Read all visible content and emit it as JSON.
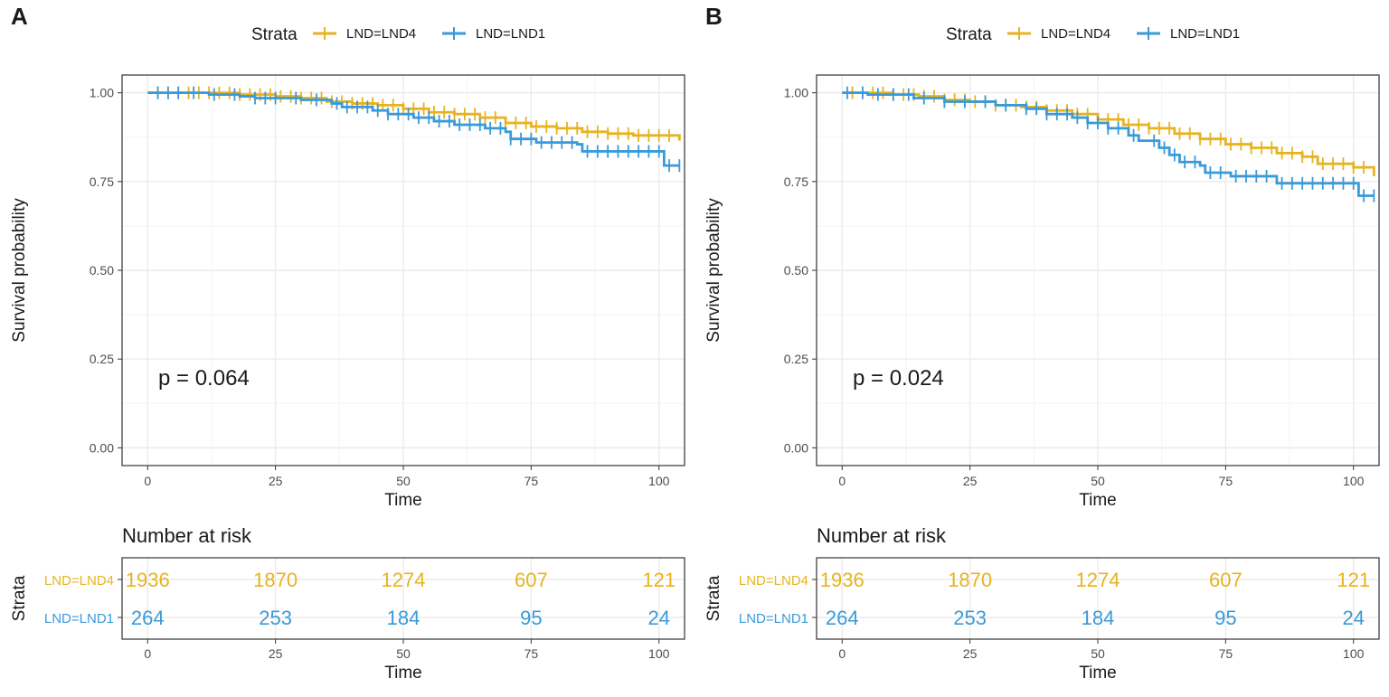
{
  "colors": {
    "lnd4": "#E7B31F",
    "lnd1": "#3A9AD9",
    "grid": "#EBEBEB",
    "axis_text": "#4D4D4D",
    "text": "#1A1A1A"
  },
  "legend": {
    "title": "Strata",
    "labels": [
      "LND=LND4",
      "LND=LND1"
    ]
  },
  "panels": [
    {
      "tag": "A",
      "p_value": "p = 0.064",
      "xlabel": "Time",
      "ylabel": "Survival probability",
      "risk_title": "Number at risk",
      "risk_ylabel": "Strata"
    },
    {
      "tag": "B",
      "p_value": "p = 0.024",
      "xlabel": "Time",
      "ylabel": "Survival probability",
      "risk_title": "Number at risk",
      "risk_ylabel": "Strata"
    }
  ],
  "chart_data": [
    {
      "type": "line",
      "title": "",
      "panel": "A",
      "xlabel": "Time",
      "ylabel": "Survival probability",
      "xlim": [
        -5,
        105
      ],
      "ylim": [
        -0.05,
        1.05
      ],
      "x_ticks": [
        0,
        25,
        50,
        75,
        100
      ],
      "x_tick_labels": [
        "0",
        "25",
        "50",
        "75",
        "100"
      ],
      "y_ticks": [
        0,
        0.25,
        0.5,
        0.75,
        1
      ],
      "y_tick_labels": [
        "0.00",
        "0.25",
        "0.50",
        "0.75",
        "1.00"
      ],
      "legend_position": "top",
      "series": [
        {
          "name": "LND=LND4",
          "color_key": "lnd4",
          "points": [
            [
              0,
              1
            ],
            [
              10,
              1
            ],
            [
              18,
              0.995
            ],
            [
              25,
              0.99
            ],
            [
              30,
              0.985
            ],
            [
              35,
              0.975
            ],
            [
              40,
              0.97
            ],
            [
              45,
              0.965
            ],
            [
              50,
              0.955
            ],
            [
              55,
              0.945
            ],
            [
              60,
              0.94
            ],
            [
              65,
              0.93
            ],
            [
              70,
              0.915
            ],
            [
              75,
              0.905
            ],
            [
              80,
              0.9
            ],
            [
              85,
              0.89
            ],
            [
              90,
              0.885
            ],
            [
              95,
              0.88
            ],
            [
              102,
              0.88
            ],
            [
              104,
              0.865
            ]
          ],
          "censor_times": [
            2,
            4,
            6,
            8,
            10,
            12,
            14,
            16,
            18,
            20,
            22,
            24,
            26,
            28,
            30,
            32,
            34,
            36,
            38,
            40,
            42,
            44,
            46,
            48,
            50,
            52,
            54,
            56,
            58,
            60,
            62,
            64,
            66,
            68,
            70,
            72,
            74,
            76,
            78,
            80,
            82,
            84,
            86,
            88,
            90,
            92,
            94,
            96,
            98,
            100,
            102
          ]
        },
        {
          "name": "LND=LND1",
          "color_key": "lnd1",
          "points": [
            [
              0,
              1
            ],
            [
              12,
              0.995
            ],
            [
              18,
              0.99
            ],
            [
              21,
              0.985
            ],
            [
              30,
              0.98
            ],
            [
              36,
              0.97
            ],
            [
              38,
              0.96
            ],
            [
              44,
              0.95
            ],
            [
              47,
              0.94
            ],
            [
              52,
              0.93
            ],
            [
              56,
              0.92
            ],
            [
              60,
              0.91
            ],
            [
              66,
              0.9
            ],
            [
              70,
              0.89
            ],
            [
              71,
              0.87
            ],
            [
              76,
              0.86
            ],
            [
              84,
              0.855
            ],
            [
              85,
              0.835
            ],
            [
              101,
              0.835
            ],
            [
              101,
              0.795
            ],
            [
              104,
              0.795
            ]
          ],
          "censor_times": [
            2,
            4,
            6,
            9,
            13,
            17,
            21,
            23,
            25,
            29,
            33,
            37,
            39,
            41,
            43,
            45,
            47,
            49,
            51,
            53,
            55,
            57,
            59,
            61,
            63,
            65,
            67,
            69,
            71,
            73,
            75,
            77,
            79,
            81,
            83,
            86,
            88,
            90,
            92,
            94,
            96,
            98,
            100,
            102,
            104
          ]
        }
      ],
      "risk_table": {
        "title": "Number at risk",
        "ylabel": "Strata",
        "times": [
          0,
          25,
          50,
          75,
          100
        ],
        "rows": [
          {
            "label": "LND=LND4",
            "values": [
              "1936",
              "1870",
              "1274",
              "607",
              "121"
            ]
          },
          {
            "label": "LND=LND1",
            "values": [
              "264",
              "253",
              "184",
              "95",
              "24"
            ]
          }
        ]
      },
      "annotation": "p = 0.064"
    },
    {
      "type": "line",
      "title": "",
      "panel": "B",
      "xlabel": "Time",
      "ylabel": "Survival probability",
      "xlim": [
        -5,
        105
      ],
      "ylim": [
        -0.05,
        1.05
      ],
      "x_ticks": [
        0,
        25,
        50,
        75,
        100
      ],
      "x_tick_labels": [
        "0",
        "25",
        "50",
        "75",
        "100"
      ],
      "y_ticks": [
        0,
        0.25,
        0.5,
        0.75,
        1
      ],
      "y_tick_labels": [
        "0.00",
        "0.25",
        "0.50",
        "0.75",
        "1.00"
      ],
      "legend_position": "top",
      "series": [
        {
          "name": "LND=LND4",
          "color_key": "lnd4",
          "points": [
            [
              0,
              1
            ],
            [
              10,
              0.995
            ],
            [
              15,
              0.99
            ],
            [
              20,
              0.98
            ],
            [
              25,
              0.975
            ],
            [
              30,
              0.965
            ],
            [
              35,
              0.96
            ],
            [
              40,
              0.95
            ],
            [
              45,
              0.94
            ],
            [
              50,
              0.925
            ],
            [
              55,
              0.91
            ],
            [
              60,
              0.9
            ],
            [
              65,
              0.885
            ],
            [
              70,
              0.87
            ],
            [
              75,
              0.855
            ],
            [
              80,
              0.845
            ],
            [
              85,
              0.83
            ],
            [
              90,
              0.82
            ],
            [
              93,
              0.8
            ],
            [
              100,
              0.79
            ],
            [
              103,
              0.79
            ],
            [
              104,
              0.765
            ]
          ],
          "censor_times": [
            2,
            4,
            6,
            8,
            10,
            12,
            14,
            16,
            18,
            20,
            22,
            24,
            26,
            28,
            30,
            32,
            34,
            36,
            38,
            40,
            42,
            44,
            46,
            48,
            50,
            52,
            54,
            56,
            58,
            60,
            62,
            64,
            66,
            68,
            70,
            72,
            74,
            76,
            78,
            80,
            82,
            84,
            86,
            88,
            90,
            92,
            94,
            96,
            98,
            100,
            102
          ]
        },
        {
          "name": "LND=LND1",
          "color_key": "lnd1",
          "points": [
            [
              0,
              1
            ],
            [
              5,
              0.995
            ],
            [
              14,
              0.985
            ],
            [
              20,
              0.975
            ],
            [
              30,
              0.965
            ],
            [
              36,
              0.955
            ],
            [
              40,
              0.94
            ],
            [
              45,
              0.93
            ],
            [
              48,
              0.915
            ],
            [
              52,
              0.9
            ],
            [
              56,
              0.88
            ],
            [
              58,
              0.865
            ],
            [
              62,
              0.845
            ],
            [
              64,
              0.825
            ],
            [
              66,
              0.805
            ],
            [
              70,
              0.795
            ],
            [
              71,
              0.775
            ],
            [
              76,
              0.765
            ],
            [
              84,
              0.765
            ],
            [
              85,
              0.745
            ],
            [
              100,
              0.745
            ],
            [
              101,
              0.71
            ],
            [
              104,
              0.71
            ]
          ],
          "censor_times": [
            1,
            4,
            7,
            10,
            13,
            16,
            20,
            24,
            28,
            32,
            36,
            38,
            40,
            42,
            44,
            46,
            48,
            50,
            52,
            54,
            57,
            61,
            63,
            65,
            67,
            69,
            72,
            74,
            77,
            79,
            81,
            83,
            86,
            88,
            90,
            92,
            94,
            96,
            98,
            100,
            102,
            104
          ]
        }
      ],
      "risk_table": {
        "title": "Number at risk",
        "ylabel": "Strata",
        "times": [
          0,
          25,
          50,
          75,
          100
        ],
        "rows": [
          {
            "label": "LND=LND4",
            "values": [
              "1936",
              "1870",
              "1274",
              "607",
              "121"
            ]
          },
          {
            "label": "LND=LND1",
            "values": [
              "264",
              "253",
              "184",
              "95",
              "24"
            ]
          }
        ]
      },
      "annotation": "p = 0.024"
    }
  ]
}
